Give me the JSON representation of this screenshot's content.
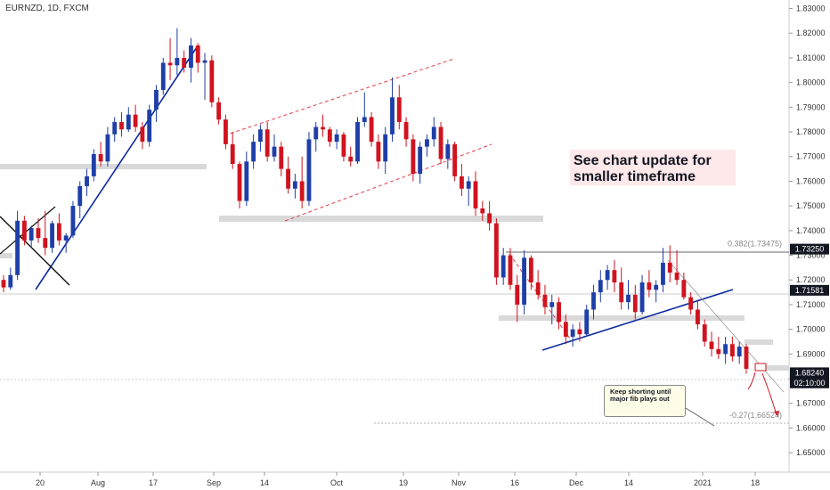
{
  "symbol": "EURNZD, 1D, FXCM",
  "callout": "See chart update for smaller timeframe",
  "note": "Keep shorting until major fib plays out",
  "colors": {
    "up": "#1e3fa8",
    "down": "#d0131f",
    "trend": "#0d2aa0",
    "channel": "#e0414a",
    "zone": "#d9d9d9"
  },
  "chart_data": {
    "type": "candlestick",
    "title": "",
    "ylim": [
      1.645,
      1.832
    ],
    "y_ticks": [
      "1.83000",
      "1.82000",
      "1.81000",
      "1.80000",
      "1.79000",
      "1.78000",
      "1.77000",
      "1.76000",
      "1.75000",
      "1.74000",
      "1.73000",
      "1.72000",
      "1.71000",
      "1.70000",
      "1.69000",
      "1.68000",
      "1.67000",
      "1.66000",
      "1.65000"
    ],
    "x_ticks": [
      {
        "label": "20",
        "x": 45
      },
      {
        "label": "Aug",
        "x": 110
      },
      {
        "label": "17",
        "x": 172
      },
      {
        "label": "Sep",
        "x": 240
      },
      {
        "label": "14",
        "x": 297
      },
      {
        "label": "Oct",
        "x": 378
      },
      {
        "label": "19",
        "x": 453
      },
      {
        "label": "Nov",
        "x": 515
      },
      {
        "label": "16",
        "x": 578
      },
      {
        "label": "Dec",
        "x": 647
      },
      {
        "label": "14",
        "x": 706
      },
      {
        "label": "2021",
        "x": 789
      },
      {
        "label": "18",
        "x": 848
      }
    ],
    "price_tags": [
      {
        "label": "1.73250",
        "value": 1.7325,
        "style": "dark"
      },
      {
        "label": "1.71581",
        "value": 1.71581,
        "style": "dark"
      },
      {
        "label": "1.68240",
        "value": 1.6824,
        "style": "dark"
      },
      {
        "label": "02:10:00",
        "value": 1.6783,
        "style": "dark"
      }
    ],
    "fib_labels": [
      {
        "text": "0.382(1.73475)",
        "value": 1.73475
      },
      {
        "text": "-0.27(1.66524)",
        "value": 1.66524
      }
    ],
    "ohlc": [
      [
        1.72,
        1.722,
        1.715,
        1.717
      ],
      [
        1.717,
        1.725,
        1.716,
        1.722
      ],
      [
        1.722,
        1.748,
        1.72,
        1.744
      ],
      [
        1.744,
        1.746,
        1.734,
        1.736
      ],
      [
        1.736,
        1.742,
        1.733,
        1.741
      ],
      [
        1.741,
        1.745,
        1.735,
        1.737
      ],
      [
        1.737,
        1.748,
        1.73,
        1.733
      ],
      [
        1.733,
        1.744,
        1.731,
        1.743
      ],
      [
        1.743,
        1.747,
        1.734,
        1.736
      ],
      [
        1.736,
        1.739,
        1.731,
        1.738
      ],
      [
        1.738,
        1.752,
        1.737,
        1.75
      ],
      [
        1.75,
        1.76,
        1.745,
        1.758
      ],
      [
        1.758,
        1.765,
        1.754,
        1.762
      ],
      [
        1.762,
        1.773,
        1.76,
        1.771
      ],
      [
        1.771,
        1.776,
        1.766,
        1.768
      ],
      [
        1.768,
        1.782,
        1.766,
        1.779
      ],
      [
        1.779,
        1.786,
        1.776,
        1.784
      ],
      [
        1.784,
        1.788,
        1.778,
        1.781
      ],
      [
        1.781,
        1.79,
        1.78,
        1.787
      ],
      [
        1.787,
        1.791,
        1.78,
        1.782
      ],
      [
        1.782,
        1.784,
        1.773,
        1.776
      ],
      [
        1.776,
        1.791,
        1.774,
        1.789
      ],
      [
        1.789,
        1.799,
        1.784,
        1.797
      ],
      [
        1.797,
        1.81,
        1.795,
        1.808
      ],
      [
        1.808,
        1.818,
        1.801,
        1.807
      ],
      [
        1.807,
        1.822,
        1.803,
        1.81
      ],
      [
        1.81,
        1.813,
        1.804,
        1.806
      ],
      [
        1.806,
        1.818,
        1.8,
        1.815
      ],
      [
        1.815,
        1.816,
        1.804,
        1.808
      ],
      [
        1.808,
        1.812,
        1.793,
        1.809
      ],
      [
        1.809,
        1.811,
        1.79,
        1.792
      ],
      [
        1.792,
        1.794,
        1.783,
        1.785
      ],
      [
        1.785,
        1.787,
        1.773,
        1.775
      ],
      [
        1.775,
        1.78,
        1.765,
        1.767
      ],
      [
        1.767,
        1.768,
        1.749,
        1.752
      ],
      [
        1.752,
        1.772,
        1.75,
        1.768
      ],
      [
        1.768,
        1.779,
        1.765,
        1.776
      ],
      [
        1.776,
        1.783,
        1.772,
        1.781
      ],
      [
        1.781,
        1.784,
        1.768,
        1.77
      ],
      [
        1.77,
        1.779,
        1.768,
        1.774
      ],
      [
        1.774,
        1.776,
        1.762,
        1.765
      ],
      [
        1.765,
        1.77,
        1.755,
        1.757
      ],
      [
        1.757,
        1.763,
        1.753,
        1.76
      ],
      [
        1.76,
        1.77,
        1.749,
        1.752
      ],
      [
        1.752,
        1.78,
        1.75,
        1.777
      ],
      [
        1.777,
        1.784,
        1.772,
        1.782
      ],
      [
        1.782,
        1.787,
        1.778,
        1.781
      ],
      [
        1.781,
        1.782,
        1.774,
        1.776
      ],
      [
        1.776,
        1.781,
        1.773,
        1.779
      ],
      [
        1.779,
        1.78,
        1.768,
        1.77
      ],
      [
        1.77,
        1.774,
        1.766,
        1.768
      ],
      [
        1.768,
        1.786,
        1.767,
        1.784
      ],
      [
        1.784,
        1.796,
        1.782,
        1.786
      ],
      [
        1.786,
        1.788,
        1.774,
        1.776
      ],
      [
        1.776,
        1.779,
        1.765,
        1.768
      ],
      [
        1.768,
        1.782,
        1.763,
        1.779
      ],
      [
        1.779,
        1.802,
        1.776,
        1.794
      ],
      [
        1.794,
        1.799,
        1.781,
        1.784
      ],
      [
        1.784,
        1.786,
        1.774,
        1.777
      ],
      [
        1.777,
        1.779,
        1.76,
        1.763
      ],
      [
        1.763,
        1.776,
        1.759,
        1.774
      ],
      [
        1.774,
        1.779,
        1.77,
        1.777
      ],
      [
        1.777,
        1.786,
        1.774,
        1.782
      ],
      [
        1.782,
        1.784,
        1.767,
        1.769
      ],
      [
        1.769,
        1.777,
        1.765,
        1.775
      ],
      [
        1.775,
        1.776,
        1.76,
        1.762
      ],
      [
        1.762,
        1.767,
        1.754,
        1.757
      ],
      [
        1.757,
        1.762,
        1.75,
        1.76
      ],
      [
        1.76,
        1.764,
        1.746,
        1.749
      ],
      [
        1.749,
        1.752,
        1.744,
        1.747
      ],
      [
        1.747,
        1.752,
        1.74,
        1.743
      ],
      [
        1.743,
        1.745,
        1.718,
        1.721
      ],
      [
        1.721,
        1.733,
        1.718,
        1.73
      ],
      [
        1.73,
        1.733,
        1.716,
        1.718
      ],
      [
        1.718,
        1.722,
        1.703,
        1.71
      ],
      [
        1.71,
        1.732,
        1.706,
        1.729
      ],
      [
        1.729,
        1.73,
        1.716,
        1.719
      ],
      [
        1.719,
        1.724,
        1.712,
        1.714
      ],
      [
        1.714,
        1.718,
        1.706,
        1.709
      ],
      [
        1.709,
        1.714,
        1.702,
        1.711
      ],
      [
        1.711,
        1.713,
        1.7,
        1.703
      ],
      [
        1.703,
        1.706,
        1.694,
        1.697
      ],
      [
        1.697,
        1.702,
        1.693,
        1.7
      ],
      [
        1.7,
        1.703,
        1.695,
        1.698
      ],
      [
        1.698,
        1.71,
        1.697,
        1.708
      ],
      [
        1.708,
        1.718,
        1.704,
        1.715
      ],
      [
        1.715,
        1.724,
        1.711,
        1.72
      ],
      [
        1.72,
        1.726,
        1.716,
        1.724
      ],
      [
        1.724,
        1.728,
        1.715,
        1.719
      ],
      [
        1.719,
        1.725,
        1.708,
        1.711
      ],
      [
        1.711,
        1.72,
        1.708,
        1.714
      ],
      [
        1.714,
        1.718,
        1.704,
        1.707
      ],
      [
        1.707,
        1.722,
        1.706,
        1.719
      ],
      [
        1.719,
        1.724,
        1.713,
        1.716
      ],
      [
        1.716,
        1.72,
        1.711,
        1.718
      ],
      [
        1.718,
        1.733,
        1.715,
        1.727
      ],
      [
        1.727,
        1.734,
        1.719,
        1.723
      ],
      [
        1.723,
        1.732,
        1.718,
        1.72
      ],
      [
        1.72,
        1.723,
        1.712,
        1.713
      ],
      [
        1.713,
        1.715,
        1.706,
        1.708
      ],
      [
        1.708,
        1.712,
        1.7,
        1.702
      ],
      [
        1.702,
        1.704,
        1.693,
        1.695
      ],
      [
        1.695,
        1.699,
        1.689,
        1.692
      ],
      [
        1.692,
        1.697,
        1.688,
        1.69
      ],
      [
        1.69,
        1.697,
        1.686,
        1.694
      ],
      [
        1.694,
        1.697,
        1.687,
        1.689
      ],
      [
        1.689,
        1.695,
        1.686,
        1.693
      ],
      [
        1.693,
        1.694,
        1.682,
        1.684
      ]
    ]
  }
}
